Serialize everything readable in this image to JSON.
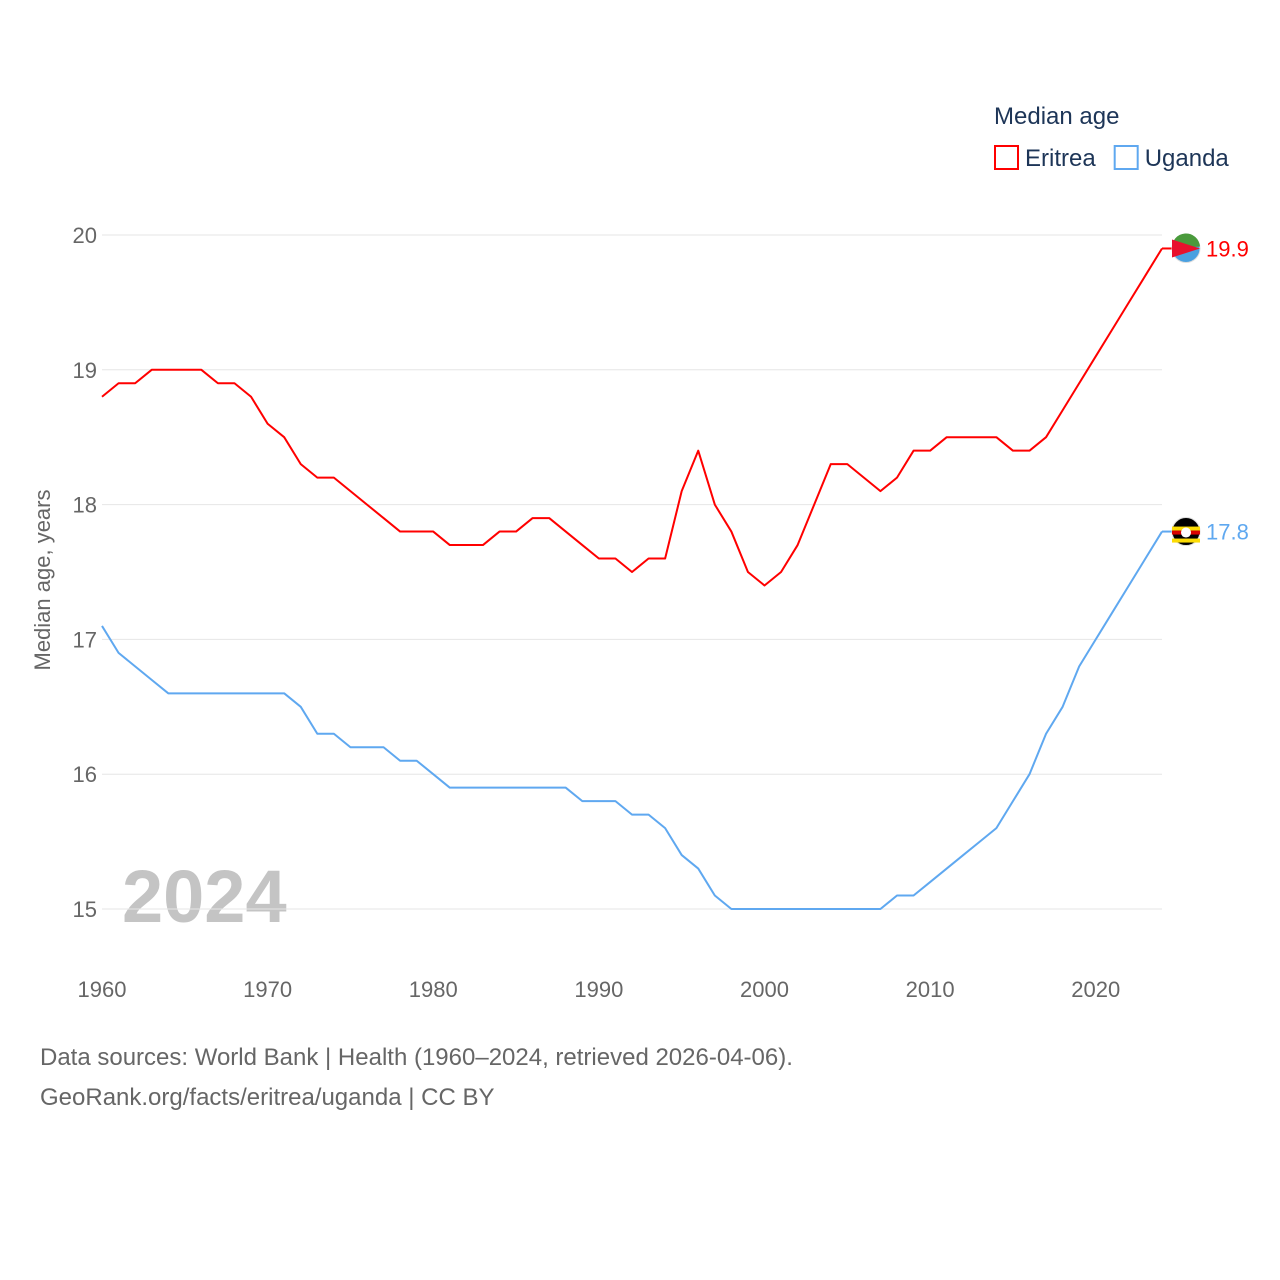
{
  "chart_data": {
    "type": "line",
    "title": "",
    "xlabel": "",
    "ylabel": "Median age, years",
    "xlim": [
      1960,
      2024
    ],
    "ylim": [
      15,
      20
    ],
    "x_ticks": [
      "1960",
      "1970",
      "1980",
      "1990",
      "2000",
      "2010",
      "2020"
    ],
    "y_ticks": [
      "15",
      "16",
      "17",
      "18",
      "19",
      "20"
    ],
    "grid": true,
    "legend": {
      "title": "Median age",
      "placement": "top-right"
    },
    "year_watermark": "2024",
    "x": [
      1960,
      1961,
      1962,
      1963,
      1964,
      1965,
      1966,
      1967,
      1968,
      1969,
      1970,
      1971,
      1972,
      1973,
      1974,
      1975,
      1976,
      1977,
      1978,
      1979,
      1980,
      1981,
      1982,
      1983,
      1984,
      1985,
      1986,
      1987,
      1988,
      1989,
      1990,
      1991,
      1992,
      1993,
      1994,
      1995,
      1996,
      1997,
      1998,
      1999,
      2000,
      2001,
      2002,
      2003,
      2004,
      2005,
      2006,
      2007,
      2008,
      2009,
      2010,
      2011,
      2012,
      2013,
      2014,
      2015,
      2016,
      2017,
      2018,
      2019,
      2020,
      2021,
      2022,
      2023,
      2024
    ],
    "series": [
      {
        "name": "Eritrea",
        "color": "#ff0000",
        "end_label": "19.9",
        "values": [
          18.8,
          18.9,
          18.9,
          19.0,
          19.0,
          19.0,
          19.0,
          18.9,
          18.9,
          18.8,
          18.6,
          18.5,
          18.3,
          18.2,
          18.2,
          18.1,
          18.0,
          17.9,
          17.8,
          17.8,
          17.8,
          17.7,
          17.7,
          17.7,
          17.8,
          17.8,
          17.9,
          17.9,
          17.8,
          17.7,
          17.6,
          17.6,
          17.5,
          17.6,
          17.6,
          18.1,
          18.4,
          18.0,
          17.8,
          17.5,
          17.4,
          17.5,
          17.7,
          18.0,
          18.3,
          18.3,
          18.2,
          18.1,
          18.2,
          18.4,
          18.4,
          18.5,
          18.5,
          18.5,
          18.5,
          18.4,
          18.4,
          18.5,
          18.7,
          18.9,
          19.1,
          19.3,
          19.5,
          19.7,
          19.9
        ]
      },
      {
        "name": "Uganda",
        "color": "#5fa8f0",
        "end_label": "17.8",
        "values": [
          17.1,
          16.9,
          16.8,
          16.7,
          16.6,
          16.6,
          16.6,
          16.6,
          16.6,
          16.6,
          16.6,
          16.6,
          16.5,
          16.3,
          16.3,
          16.2,
          16.2,
          16.2,
          16.1,
          16.1,
          16.0,
          15.9,
          15.9,
          15.9,
          15.9,
          15.9,
          15.9,
          15.9,
          15.9,
          15.8,
          15.8,
          15.8,
          15.7,
          15.7,
          15.6,
          15.4,
          15.3,
          15.1,
          15.0,
          15.0,
          15.0,
          15.0,
          15.0,
          15.0,
          15.0,
          15.0,
          15.0,
          15.0,
          15.1,
          15.1,
          15.2,
          15.3,
          15.4,
          15.5,
          15.6,
          15.8,
          16.0,
          16.3,
          16.5,
          16.8,
          17.0,
          17.2,
          17.4,
          17.6,
          17.8
        ]
      }
    ]
  },
  "footer": {
    "sources": "Data sources: World Bank | Health (1960–2024, retrieved 2026-04-06).",
    "attribution": "GeoRank.org/facts/eritrea/uganda | CC BY"
  }
}
